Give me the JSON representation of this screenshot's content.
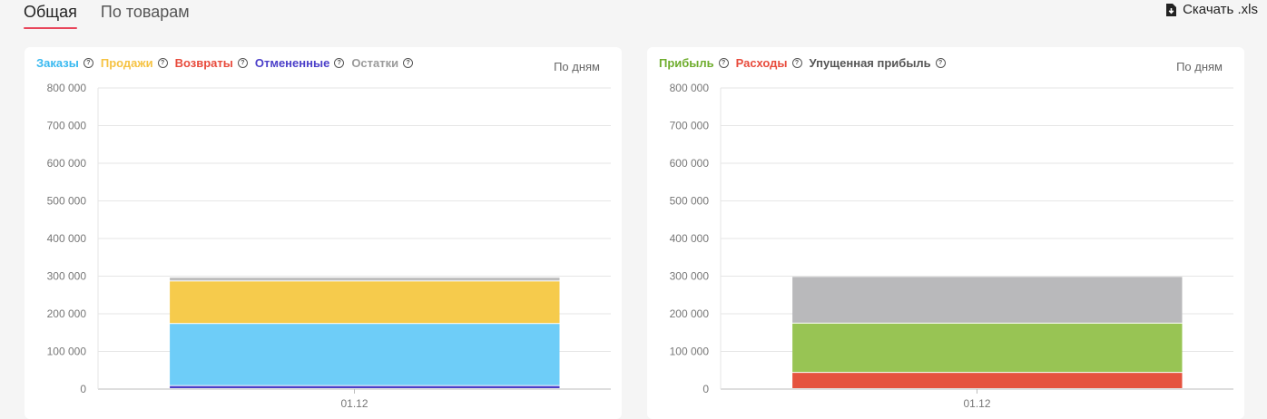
{
  "tabs": [
    {
      "label": "Общая",
      "active": true
    },
    {
      "label": "По товарам",
      "active": false
    }
  ],
  "download": {
    "label": "Скачать .xls",
    "icon": "file-download-icon"
  },
  "charts": [
    {
      "period_label": "По дням",
      "legend": [
        {
          "label": "Заказы",
          "color": "#39b9f0"
        },
        {
          "label": "Продажи",
          "color": "#f6c343"
        },
        {
          "label": "Возвраты",
          "color": "#e84b3c"
        },
        {
          "label": "Отмененные",
          "color": "#4b3fc9"
        },
        {
          "label": "Остатки",
          "color": "#9b9b9b"
        }
      ]
    },
    {
      "period_label": "По дням",
      "legend": [
        {
          "label": "Прибыль",
          "color": "#6fad2e"
        },
        {
          "label": "Расходы",
          "color": "#e84b3c"
        },
        {
          "label": "Упущенная прибыль",
          "color": "#555555"
        }
      ]
    }
  ],
  "chart_data": [
    {
      "type": "bar",
      "stacked": true,
      "categories": [
        "01.12"
      ],
      "yticks": [
        "0",
        "100 000",
        "200 000",
        "300 000",
        "400 000",
        "500 000",
        "600 000",
        "700 000",
        "800 000"
      ],
      "ylim": [
        0,
        800000
      ],
      "grid": true,
      "series": [
        {
          "name": "Отмененные",
          "color": "#4b3fc9",
          "values": [
            8000
          ]
        },
        {
          "name": "Заказы",
          "color": "#6ecdf8",
          "values": [
            165000
          ]
        },
        {
          "name": "Продажи",
          "color": "#f6cb4c",
          "values": [
            113000
          ]
        },
        {
          "name": "Возвраты",
          "color": "#e84b3c",
          "values": [
            0
          ]
        },
        {
          "name": "Остатки",
          "color": "#bdbdbd",
          "values": [
            10000
          ]
        }
      ]
    },
    {
      "type": "bar",
      "stacked": true,
      "categories": [
        "01.12"
      ],
      "yticks": [
        "0",
        "100 000",
        "200 000",
        "300 000",
        "400 000",
        "500 000",
        "600 000",
        "700 000",
        "800 000"
      ],
      "ylim": [
        0,
        800000
      ],
      "grid": true,
      "series": [
        {
          "name": "Расходы",
          "color": "#e5533f",
          "values": [
            43000
          ]
        },
        {
          "name": "Прибыль",
          "color": "#98c454",
          "values": [
            131000
          ]
        },
        {
          "name": "Упущенная прибыль",
          "color": "#b9b9bb",
          "values": [
            124000
          ]
        }
      ]
    }
  ]
}
